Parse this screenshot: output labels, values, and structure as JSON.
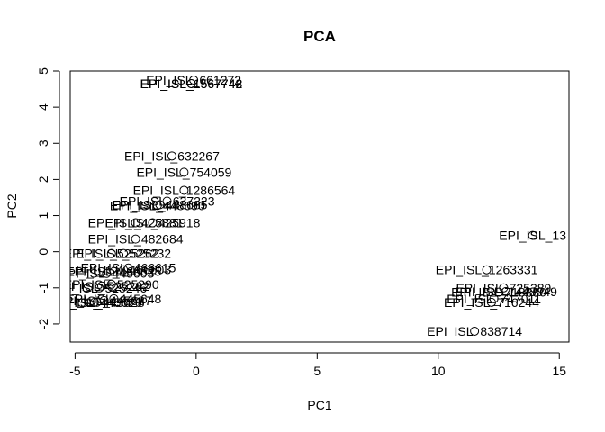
{
  "chart_data": {
    "type": "scatter",
    "title": "PCA",
    "xlabel": "PC1",
    "ylabel": "PC2",
    "xlim": [
      -5.2,
      15.4
    ],
    "ylim": [
      -2.5,
      5.0
    ],
    "xticks": [
      -5,
      0,
      5,
      10,
      15
    ],
    "yticks": [
      -2,
      -1,
      0,
      1,
      2,
      3,
      4,
      5
    ],
    "grid": false,
    "legend": "none",
    "point_style": "open-circle",
    "color": "#000000",
    "points": [
      {
        "x": -0.1,
        "y": 4.75,
        "label": "EPI_ISL_661272"
      },
      {
        "x": -0.2,
        "y": 4.65,
        "label": "EPI_ISL_1567742"
      },
      {
        "x": -0.2,
        "y": 4.65,
        "label": "EPI_ISL_1567748"
      },
      {
        "x": -1.0,
        "y": 2.65,
        "label": "EPI_ISL_632267"
      },
      {
        "x": -0.5,
        "y": 2.2,
        "label": "EPI_ISL_754059"
      },
      {
        "x": -0.5,
        "y": 1.7,
        "label": "EPI_ISL_1286564"
      },
      {
        "x": -1.2,
        "y": 1.4,
        "label": "EPI_ISL_637223"
      },
      {
        "x": -1.5,
        "y": 1.3,
        "label": "EPI_ISL_448685"
      },
      {
        "x": -1.6,
        "y": 1.28,
        "label": "EPI_ISL_448690"
      },
      {
        "x": -1.8,
        "y": 0.8,
        "label": "EPI_ISL_425918"
      },
      {
        "x": -2.5,
        "y": 0.8,
        "label": "EPI_ISL_425881"
      },
      {
        "x": -2.5,
        "y": 0.35,
        "label": "EPI_ISL_482684"
      },
      {
        "x": -3.0,
        "y": -0.05,
        "label": "EPI_ISL_525232"
      },
      {
        "x": -3.5,
        "y": -0.05,
        "label": "EPI_ISL_525262"
      },
      {
        "x": -2.8,
        "y": -0.45,
        "label": "EPI_ISL_466615"
      },
      {
        "x": -3.0,
        "y": -0.5,
        "label": "EPI_ISL_466603"
      },
      {
        "x": -3.4,
        "y": -0.55,
        "label": "EPI_ISL_466625"
      },
      {
        "x": -3.7,
        "y": -0.6,
        "label": "EPI_ISL_445603"
      },
      {
        "x": -3.5,
        "y": -0.9,
        "label": "EPI_ISL_525290"
      },
      {
        "x": -3.9,
        "y": -0.95,
        "label": "EPI_ISL_525282"
      },
      {
        "x": -4.0,
        "y": -1.0,
        "label": "EPI_ISL_525246"
      },
      {
        "x": -3.4,
        "y": -1.3,
        "label": "EPI_ISL_445648"
      },
      {
        "x": -3.8,
        "y": -1.35,
        "label": "EPI_ISL_445687"
      },
      {
        "x": -4.1,
        "y": -1.4,
        "label": "EPI_ISL_445628"
      },
      {
        "x": -4.2,
        "y": -1.4,
        "label": "EPI_ISL_445620"
      },
      {
        "x": 13.9,
        "y": 0.45,
        "label": "EPI_ISL_13"
      },
      {
        "x": 12.0,
        "y": -0.5,
        "label": "EPI_ISL_1263331"
      },
      {
        "x": 12.7,
        "y": -1.0,
        "label": "EPI_ISL_725389"
      },
      {
        "x": 12.8,
        "y": -1.1,
        "label": "EPI_ISL_1443049"
      },
      {
        "x": 12.5,
        "y": -1.12,
        "label": "EPI_ISL_718880"
      },
      {
        "x": 12.3,
        "y": -1.3,
        "label": "EPI_ISL_747011"
      },
      {
        "x": 12.2,
        "y": -1.4,
        "label": "EPI_ISL_716244"
      },
      {
        "x": 11.5,
        "y": -2.2,
        "label": "EPI_ISL_838714"
      }
    ]
  }
}
